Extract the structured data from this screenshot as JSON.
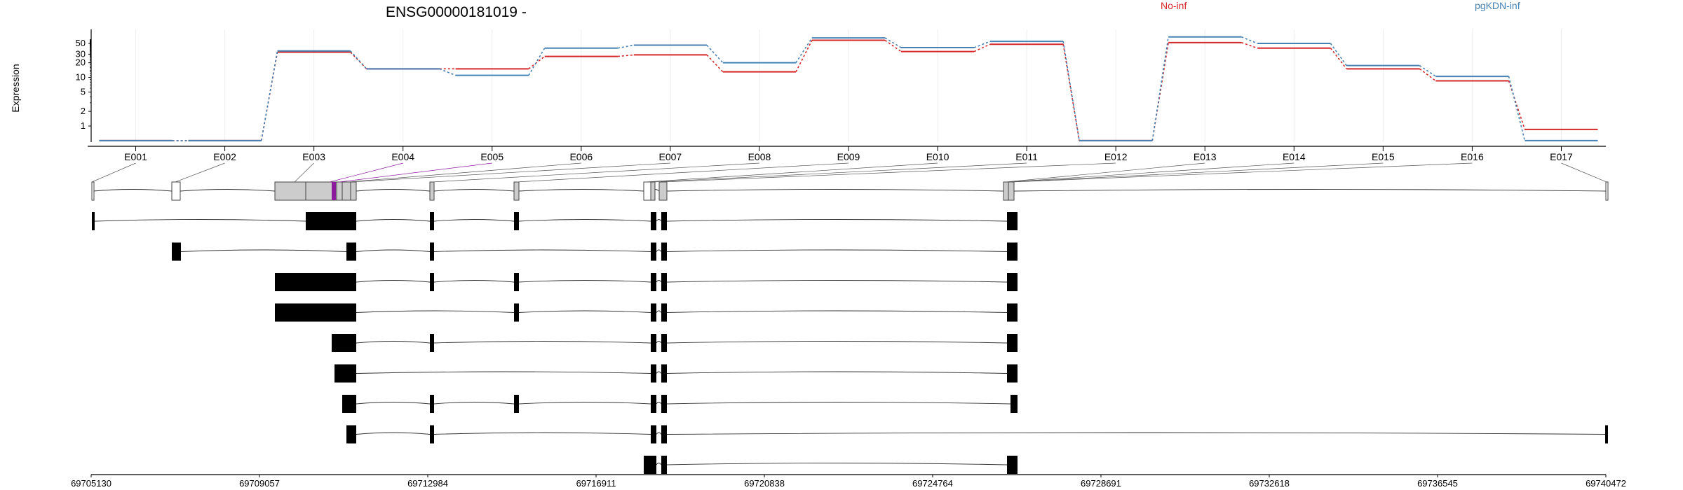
{
  "chart_data": {
    "type": "line",
    "title": "ENSG00000181019 -",
    "ylabel": "Expression",
    "yscale": "log",
    "yticks": [
      1,
      2,
      5,
      10,
      20,
      30,
      50
    ],
    "categories": [
      "E001",
      "E002",
      "E003",
      "E004",
      "E005",
      "E006",
      "E007",
      "E008",
      "E009",
      "E010",
      "E011",
      "E012",
      "E013",
      "E014",
      "E015",
      "E016",
      "E017"
    ],
    "series": [
      {
        "name": "No-inf",
        "color": "#d62728",
        "values": [
          0.5,
          0.5,
          33,
          15,
          15,
          27,
          29,
          13,
          58,
          34,
          48,
          0.5,
          52,
          40,
          15,
          8.5,
          0.85
        ]
      },
      {
        "name": "pgKDN-inf",
        "color": "#4682b4",
        "values": [
          0.5,
          0.5,
          35,
          15,
          11,
          40,
          46,
          20,
          65,
          41,
          55,
          0.5,
          68,
          50,
          17.5,
          10.5,
          0.5
        ]
      }
    ],
    "legend_placement": "top",
    "grid": true,
    "genomic_axis": {
      "tick_labels": [
        "69705130",
        "69709057",
        "69712984",
        "69716911",
        "69720838",
        "69724764",
        "69728691",
        "69732618",
        "69736545",
        "69740472"
      ]
    },
    "exon_track": {
      "collapsed_exons": 17,
      "highlighted_exon": "E003",
      "highlight_color": "#8b1a9c"
    },
    "transcripts": 9
  }
}
